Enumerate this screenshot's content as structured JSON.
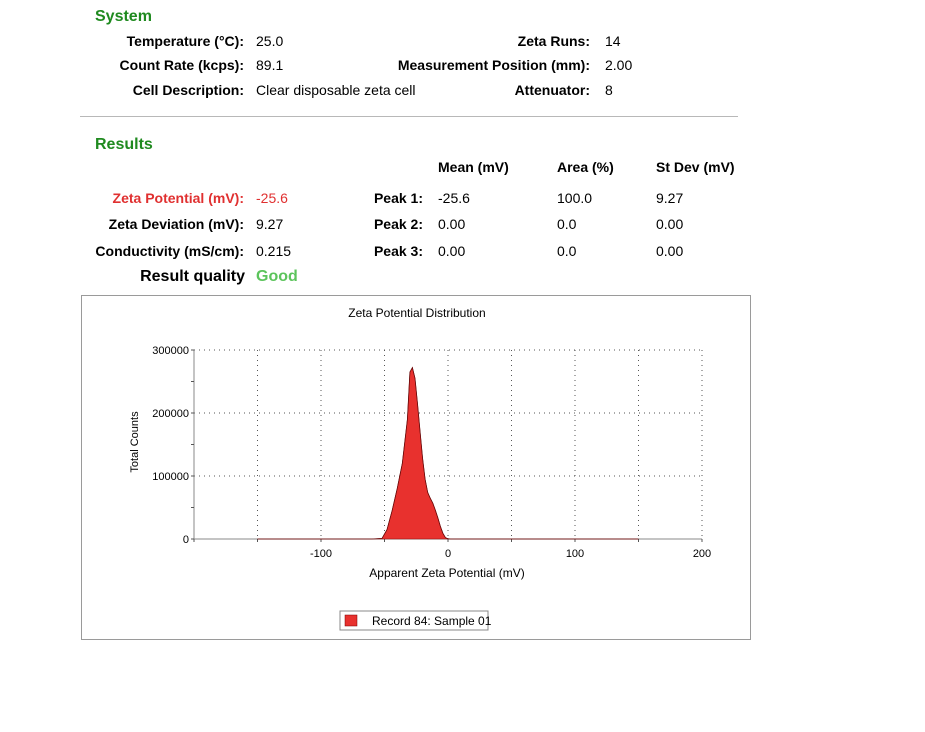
{
  "system": {
    "heading": "System",
    "temperature_label": "Temperature (°C):",
    "temperature_value": "25.0",
    "count_rate_label": "Count Rate (kcps):",
    "count_rate_value": "89.1",
    "cell_label": "Cell Description:",
    "cell_value": "Clear disposable zeta cell",
    "zeta_runs_label": "Zeta Runs:",
    "zeta_runs_value": "14",
    "measurement_position_label": "Measurement Position (mm):",
    "measurement_position_value": "2.00",
    "attenuator_label": "Attenuator:",
    "attenuator_value": "8"
  },
  "results": {
    "heading": "Results",
    "col_mean": "Mean (mV)",
    "col_area": "Area (%)",
    "col_stdev": "St Dev (mV)",
    "zeta_potential_label": "Zeta Potential (mV):",
    "zeta_potential_value": "-25.6",
    "zeta_deviation_label": "Zeta Deviation (mV):",
    "zeta_deviation_value": "9.27",
    "conductivity_label": "Conductivity (mS/cm):",
    "conductivity_value": "0.215",
    "quality_label": "Result quality",
    "quality_value": "Good",
    "peaks": [
      {
        "label": "Peak 1:",
        "mean": "-25.6",
        "area": "100.0",
        "stdev": "9.27"
      },
      {
        "label": "Peak 2:",
        "mean": "0.00",
        "area": "0.0",
        "stdev": "0.00"
      },
      {
        "label": "Peak 3:",
        "mean": "0.00",
        "area": "0.0",
        "stdev": "0.00"
      }
    ],
    "accent_red": "#e03030",
    "good_color": "#5cc45c",
    "heading_color": "#1f8a1f"
  },
  "chart_data": {
    "type": "area",
    "title": "Zeta Potential Distribution",
    "xlabel": "Apparent Zeta Potential (mV)",
    "ylabel": "Total Counts",
    "xlim": [
      -200,
      200
    ],
    "ylim": [
      0,
      300000
    ],
    "xticks": [
      -100,
      0,
      100,
      200
    ],
    "yticks": [
      0,
      100000,
      200000,
      300000
    ],
    "grid": true,
    "legend_position": "bottom",
    "series": [
      {
        "name": "Record 84: Sample 01",
        "color": "#e8312e",
        "x": [
          -150,
          -100,
          -60,
          -52,
          -48,
          -44,
          -40,
          -36,
          -32,
          -30,
          -28,
          -26,
          -24,
          -22,
          -20,
          -18,
          -16,
          -14,
          -12,
          -10,
          -8,
          -6,
          -4,
          -2,
          0,
          2,
          20,
          60,
          100,
          150
        ],
        "y": [
          0,
          0,
          0,
          1000,
          15000,
          45000,
          80000,
          120000,
          190000,
          265000,
          272000,
          255000,
          215000,
          170000,
          128000,
          95000,
          74000,
          65000,
          57000,
          46000,
          34000,
          20000,
          9000,
          2000,
          500,
          0,
          0,
          0,
          0,
          0
        ]
      }
    ]
  }
}
